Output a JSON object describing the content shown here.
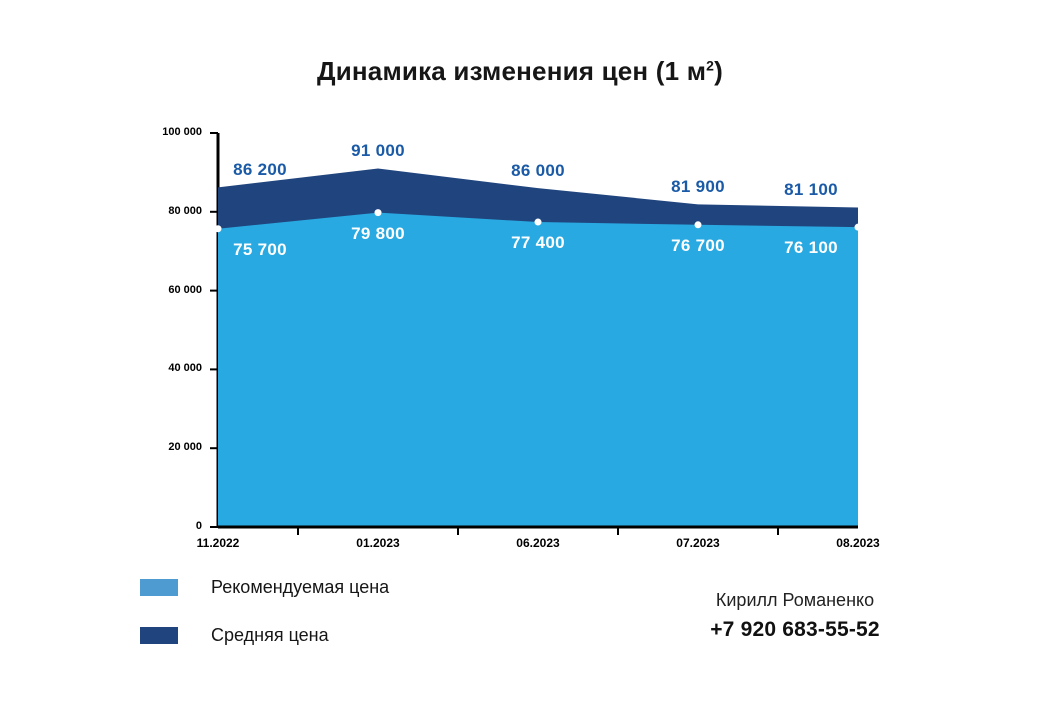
{
  "title": {
    "pre": "Динамика изменения цен (1 м",
    "sup": "2",
    "post": ")"
  },
  "chart_data": {
    "type": "area",
    "title": "Динамика изменения цен (1 м²)",
    "categories": [
      "11.2022",
      "01.2023",
      "06.2023",
      "07.2023",
      "08.2023"
    ],
    "series": [
      {
        "name": "Средняя цена",
        "values": [
          86200,
          91000,
          86000,
          81900,
          81100
        ],
        "labels": [
          "86 200",
          "91 000",
          "86 000",
          "81 900",
          "81 100"
        ],
        "color": "#20457E",
        "label_color": "#1A5AA6"
      },
      {
        "name": "Рекомендуемая цена",
        "values": [
          75700,
          79800,
          77400,
          76700,
          76100
        ],
        "labels": [
          "75 700",
          "79 800",
          "77 400",
          "76 700",
          "76 100"
        ],
        "color": "#29A9E1",
        "label_color": "#FFFFFF"
      }
    ],
    "xlabel": "",
    "ylabel": "",
    "ylim": [
      0,
      100000
    ],
    "yticks": [
      "0",
      "20 000",
      "40 000",
      "60 000",
      "80 000",
      "100 000"
    ],
    "grid": false,
    "legend_position": "bottom-left",
    "marker_color": "#FFFFFF",
    "axis_color": "#000000"
  },
  "legend": {
    "items": [
      {
        "label": "Рекомендуемая цена",
        "color": "#4E9BD2"
      },
      {
        "label": "Средняя цена",
        "color": "#20457E"
      }
    ]
  },
  "contact": {
    "name": "Кирилл Романенко",
    "phone": "+7 920 683-55-52"
  },
  "colors": {
    "background": "#FFFFFF",
    "text": "#161616"
  }
}
